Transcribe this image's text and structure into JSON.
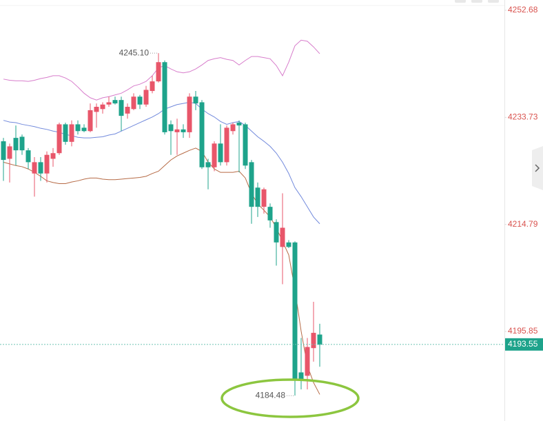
{
  "chart_data": {
    "type": "candlestick",
    "open": [
      4229.5,
      4226.4,
      4230.1,
      4230.3,
      4227.9,
      4223.8,
      4225.8,
      4223.8,
      4226.4,
      4227.4,
      4232.5,
      4229.4,
      4232.5,
      4231.9,
      4231.3,
      4234.7,
      4235.2,
      4236.0,
      4236.8,
      4236.8,
      4234.4,
      4235.2,
      4237.4,
      4236.0,
      4238.4,
      4240.1,
      4243.5,
      4232.5,
      4231.1,
      4231.6,
      4231.1,
      4237.4,
      4236.4,
      4225.8,
      4224.9,
      4229.1,
      4225.8,
      4231.3,
      4232.8,
      4232.5,
      4225.8,
      4221.3,
      4217.9,
      4217.9,
      4215.2,
      4210.8,
      4211.6,
      4211.6,
      4188.6,
      4188.0,
      4192.9,
      4195.3
    ],
    "high": [
      4230.1,
      4229.1,
      4232.3,
      4230.7,
      4228.3,
      4226.7,
      4226.7,
      4227.7,
      4228.3,
      4232.8,
      4232.8,
      4233.2,
      4233.2,
      4232.5,
      4236.2,
      4236.2,
      4236.4,
      4237.4,
      4237.4,
      4237.4,
      4236.2,
      4238.0,
      4237.7,
      4239.3,
      4241.1,
      4245.1,
      4243.8,
      4233.2,
      4233.5,
      4232.5,
      4238.0,
      4238.4,
      4236.8,
      4226.4,
      4229.5,
      4232.5,
      4232.3,
      4232.8,
      4233.2,
      4232.8,
      4226.2,
      4222.2,
      4221.3,
      4218.5,
      4215.7,
      4220.3,
      4212.0,
      4211.8,
      4194.7,
      4194.7,
      4201.1,
      4197.2
    ],
    "low": [
      4222.5,
      4222.2,
      4225.2,
      4227.1,
      4224.6,
      4219.7,
      4222.5,
      4222.2,
      4225.0,
      4227.1,
      4228.9,
      4228.6,
      4230.7,
      4231.1,
      4231.1,
      4231.9,
      4234.4,
      4235.6,
      4236.0,
      4231.3,
      4233.5,
      4235.0,
      4235.2,
      4235.6,
      4238.0,
      4239.9,
      4230.7,
      4227.1,
      4227.1,
      4230.1,
      4230.1,
      4235.0,
      4224.6,
      4221.0,
      4224.2,
      4225.2,
      4225.2,
      4230.7,
      4224.0,
      4224.6,
      4214.9,
      4216.1,
      4216.7,
      4214.2,
      4207.5,
      4204.2,
      4210.6,
      4184.5,
      4185.6,
      4185.6,
      4190.5,
      4189.6
    ],
    "close": [
      4226.2,
      4228.6,
      4227.9,
      4227.9,
      4225.8,
      4225.8,
      4223.8,
      4227.1,
      4227.4,
      4232.5,
      4229.4,
      4232.5,
      4231.3,
      4231.3,
      4235.0,
      4235.6,
      4236.0,
      4236.4,
      4236.2,
      4234.0,
      4235.6,
      4237.4,
      4236.0,
      4238.6,
      4240.1,
      4243.5,
      4231.1,
      4231.3,
      4231.6,
      4231.1,
      4237.4,
      4236.2,
      4224.9,
      4224.9,
      4229.1,
      4225.8,
      4231.9,
      4232.5,
      4232.3,
      4225.2,
      4217.9,
      4217.9,
      4221.0,
      4215.5,
      4211.6,
      4214.2,
      4210.8,
      4187.4,
      4187.2,
      4193.1,
      4195.6,
      4193.5
    ],
    "up_color": "#e8566a",
    "down_color": "#1ea38b",
    "series": [
      {
        "color": "#d77ccb",
        "values": [
          4240.5,
          4240.3,
          4240.2,
          4240.2,
          4240.1,
          4240.3,
          4240.6,
          4240.8,
          4241.1,
          4241.1,
          4240.7,
          4240.1,
          4239.1,
          4238.0,
          4237.2,
          4236.8,
          4237.2,
          4237.4,
          4237.7,
          4238.0,
          4238.6,
          4239.3,
          4239.6,
          4240.1,
          4241.1,
          4242.5,
          4242.9,
          4242.3,
          4241.8,
          4241.6,
          4241.8,
          4242.3,
          4243.0,
          4243.8,
          4244.1,
          4244.3,
          4244.0,
          4243.8,
          4243.0,
          4243.8,
          4244.5,
          4244.5,
          4244.3,
          4244.1,
          4242.9,
          4241.1,
          4243.5,
          4246.4,
          4247.4,
          4247.2,
          4246.2,
          4245.0
        ]
      },
      {
        "color": "#7189dc",
        "values": [
          4233.2,
          4232.9,
          4232.8,
          4232.5,
          4232.3,
          4232.1,
          4231.8,
          4231.6,
          4231.3,
          4231.1,
          4230.7,
          4230.5,
          4230.2,
          4230.1,
          4230.1,
          4230.2,
          4230.3,
          4230.6,
          4230.8,
          4231.3,
          4231.8,
          4232.3,
          4232.8,
          4233.3,
          4233.8,
          4234.4,
          4235.2,
          4235.6,
          4236.0,
          4236.2,
          4236.4,
          4236.2,
          4235.2,
          4234.4,
          4233.8,
          4233.0,
          4232.5,
          4232.8,
          4233.0,
          4232.3,
          4231.3,
          4230.3,
          4229.5,
          4228.6,
          4227.4,
          4225.8,
          4223.8,
          4221.3,
          4219.7,
          4217.9,
          4216.1,
          4214.9
        ]
      },
      {
        "color": "#b66a45",
        "values": [
          4225.8,
          4225.5,
          4225.2,
          4225.0,
          4224.6,
          4224.0,
          4223.3,
          4222.5,
          4222.2,
          4222.0,
          4222.0,
          4222.3,
          4222.5,
          4222.8,
          4223.0,
          4223.0,
          4222.8,
          4222.7,
          4222.7,
          4222.8,
          4222.9,
          4223.0,
          4223.1,
          4223.3,
          4223.8,
          4224.2,
          4225.2,
          4226.2,
          4226.9,
          4227.4,
          4227.9,
          4228.3,
          4227.7,
          4225.8,
          4224.6,
          4224.0,
          4224.0,
          4224.0,
          4224.2,
          4223.0,
          4220.3,
          4218.4,
          4217.3,
          4216.1,
          4214.2,
          4211.8,
          4209.4,
          4203.3,
          4195.9,
          4189.8,
          4186.8,
          4184.7
        ]
      }
    ],
    "ylim": [
      4180,
      4254.5
    ],
    "yticks": [
      4252.68,
      4233.73,
      4214.79,
      4195.85
    ],
    "tick_color": "#d9534f",
    "last_price": 4193.55,
    "annotations": [
      {
        "value": 4245.1,
        "label": "4245.10"
      },
      {
        "value": 4184.48,
        "label": "4184.48"
      }
    ]
  }
}
